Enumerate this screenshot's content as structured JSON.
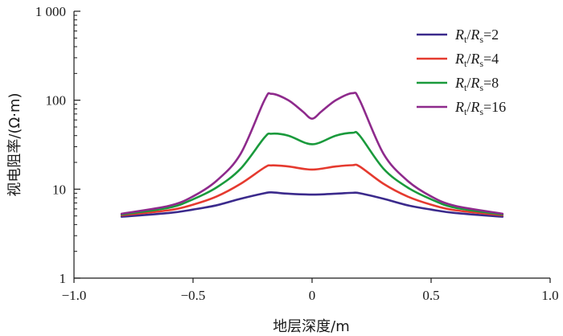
{
  "chart_data": {
    "type": "line",
    "xlabel": "地层深度/m",
    "ylabel": "视电阻率/(Ω·m)",
    "xlim": [
      -1.0,
      1.0
    ],
    "ylim": [
      1,
      1000
    ],
    "y_scale": "log",
    "grid": false,
    "legend_position": "top-right",
    "x_ticks": [
      -1.0,
      -0.5,
      0,
      0.5,
      1.0
    ],
    "x_tick_labels": [
      "−1.0",
      "−0.5",
      "0",
      "0.5",
      "1.0"
    ],
    "y_ticks": [
      1,
      10,
      100,
      1000
    ],
    "y_tick_labels": [
      "1",
      "10",
      "100",
      "1 000"
    ],
    "series": [
      {
        "name": "Rt/Rs=2",
        "legend": {
          "a": "R",
          "a_sub": "t",
          "b": "R",
          "b_sub": "s",
          "rest": "=2"
        },
        "color": "#3b2a8c",
        "x": [
          -0.8,
          -0.6,
          -0.5,
          -0.4,
          -0.3,
          -0.2,
          -0.17,
          -0.1,
          0,
          0.1,
          0.17,
          0.2,
          0.3,
          0.4,
          0.5,
          0.6,
          0.8
        ],
        "y": [
          4.9,
          5.4,
          5.9,
          6.6,
          7.8,
          9.0,
          9.2,
          8.9,
          8.7,
          8.9,
          9.1,
          9.0,
          7.8,
          6.6,
          5.9,
          5.4,
          4.9
        ]
      },
      {
        "name": "Rt/Rs=4",
        "legend": {
          "a": "R",
          "a_sub": "t",
          "b": "R",
          "b_sub": "s",
          "rest": "=4"
        },
        "color": "#e53a2f",
        "x": [
          -0.8,
          -0.6,
          -0.5,
          -0.4,
          -0.3,
          -0.2,
          -0.17,
          -0.1,
          0,
          0.1,
          0.17,
          0.2,
          0.3,
          0.4,
          0.5,
          0.6,
          0.8
        ],
        "y": [
          5.1,
          5.8,
          6.7,
          8.3,
          11.5,
          17.5,
          18.5,
          18.0,
          16.6,
          18.0,
          18.6,
          18.0,
          11.5,
          8.3,
          6.7,
          5.8,
          5.1
        ]
      },
      {
        "name": "Rt/Rs=8",
        "legend": {
          "a": "R",
          "a_sub": "t",
          "b": "R",
          "b_sub": "s",
          "rest": "=8"
        },
        "color": "#1a9a3c",
        "x": [
          -0.8,
          -0.6,
          -0.5,
          -0.4,
          -0.3,
          -0.2,
          -0.17,
          -0.1,
          0,
          0.1,
          0.17,
          0.2,
          0.3,
          0.4,
          0.5,
          0.6,
          0.8
        ],
        "y": [
          5.2,
          6.2,
          7.7,
          10.5,
          17.0,
          38.0,
          42.0,
          40.0,
          32.0,
          40.0,
          43.0,
          40.0,
          17.0,
          10.5,
          7.7,
          6.2,
          5.2
        ]
      },
      {
        "name": "Rt/Rs=16",
        "legend": {
          "a": "R",
          "a_sub": "t",
          "b": "R",
          "b_sub": "s",
          "rest": "=16"
        },
        "color": "#8e2a8c",
        "x": [
          -0.8,
          -0.6,
          -0.5,
          -0.4,
          -0.3,
          -0.2,
          -0.17,
          -0.1,
          -0.04,
          0,
          0.04,
          0.1,
          0.17,
          0.2,
          0.3,
          0.4,
          0.5,
          0.6,
          0.8
        ],
        "y": [
          5.3,
          6.5,
          8.3,
          12.5,
          25.0,
          100.0,
          118.0,
          100.0,
          75.0,
          62.0,
          75.0,
          100.0,
          120.0,
          100.0,
          25.0,
          12.5,
          8.3,
          6.5,
          5.3
        ]
      }
    ]
  }
}
